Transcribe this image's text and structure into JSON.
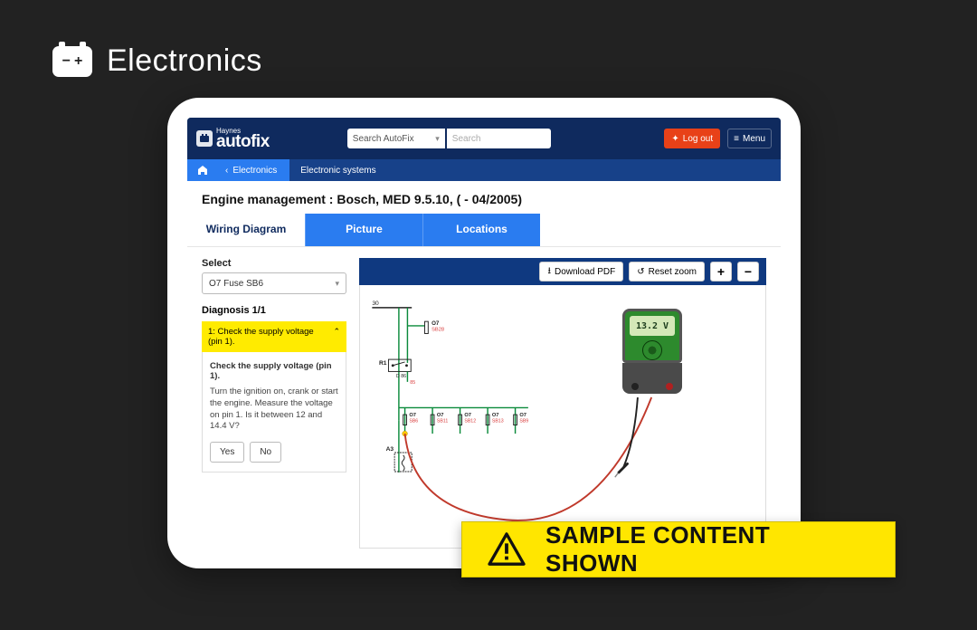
{
  "section": {
    "title": "Electronics"
  },
  "header": {
    "brand_line1": "Haynes",
    "brand_line2": "autofix",
    "search_select": "Search AutoFix",
    "search_placeholder": "Search",
    "logout": "Log out",
    "menu": "Menu"
  },
  "breadcrumb": {
    "back": "Electronics",
    "current": "Electronic systems"
  },
  "page": {
    "title": "Engine management :  Bosch, MED 9.5.10, ( - 04/2005)"
  },
  "tabs": {
    "t1": "Wiring Diagram",
    "t2": "Picture",
    "t3": "Locations"
  },
  "sidebar": {
    "select_label": "Select",
    "select_value": "O7  Fuse  SB6",
    "diagnosis_heading": "Diagnosis 1/1",
    "step_header": "1: Check the supply voltage (pin 1).",
    "step_title": "Check the supply voltage (pin 1).",
    "step_desc": "Turn the ignition on, crank or start the engine. Measure the voltage on pin 1. Is it between 12 and 14.4 V?",
    "yes": "Yes",
    "no": "No"
  },
  "toolbar": {
    "download": "Download PDF",
    "reset": "Reset zoom",
    "zoom_in": "+",
    "zoom_out": "−"
  },
  "meter": {
    "reading": "13.2 V"
  },
  "diagram": {
    "colors": {
      "wire_green": "#0a8a3a",
      "wire_black": "#222222",
      "label_red": "#d83a3a",
      "lead_red": "#c0392b",
      "lead_black": "#222222"
    },
    "top_label": "30",
    "relay_label": "R1",
    "relay_sub": "D 86",
    "node_top": {
      "code": "O7",
      "sub": "SB28"
    },
    "fuse_row": [
      {
        "code": "O7",
        "sub": "SB6"
      },
      {
        "code": "O7",
        "sub": "SB11"
      },
      {
        "code": "O7",
        "sub": "SB12"
      },
      {
        "code": "O7",
        "sub": "SB13"
      },
      {
        "code": "O7",
        "sub": "SB9"
      }
    ],
    "bottom_left": "A3",
    "small_num": "85"
  },
  "banner": {
    "text": "SAMPLE CONTENT SHOWN"
  }
}
